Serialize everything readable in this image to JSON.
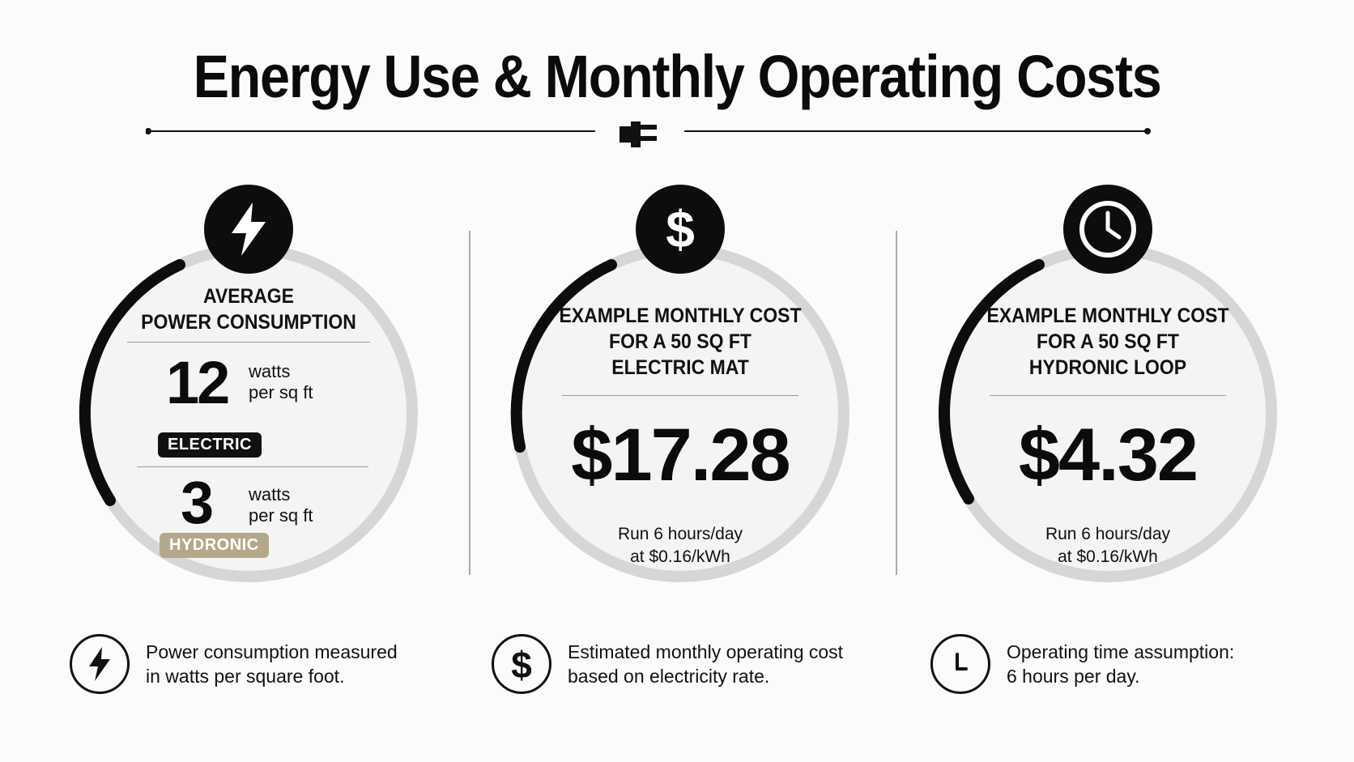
{
  "title": "Energy Use & Monthly Operating Costs",
  "icons": {
    "divider": "plug-icon",
    "card1": "lightning-icon",
    "card2": "dollar-icon",
    "card3": "clock-icon"
  },
  "colors": {
    "dark": "#0d0d0d",
    "ring_track": "#d6d6d6",
    "hydronic_tag": "#b5a88a"
  },
  "cards": [
    {
      "heading_line1": "AVERAGE",
      "heading_line2": "POWER CONSUMPTION",
      "electric_value": "12",
      "electric_unit_line1": "watts",
      "electric_unit_line2": "per sq ft",
      "electric_tag": "ELECTRIC",
      "hydronic_value": "3",
      "hydronic_unit_line1": "watts",
      "hydronic_unit_line2": "per sq ft",
      "hydronic_tag": "HYDRONIC"
    },
    {
      "heading_line1": "EXAMPLE MONTHLY COST",
      "heading_line2": "FOR A 50 SQ FT",
      "heading_line3": "ELECTRIC MAT",
      "value": "$17.28",
      "note_line1": "Run 6 hours/day",
      "note_line2": "at $0.16/kWh"
    },
    {
      "heading_line1": "EXAMPLE MONTHLY COST",
      "heading_line2": "FOR A 50 SQ FT",
      "heading_line3": "HYDRONIC LOOP",
      "value": "$4.32",
      "note_line1": "Run 6 hours/day",
      "note_line2": "at $0.16/kWh"
    }
  ],
  "footer": [
    {
      "line1": "Power consumption measured",
      "line2": "in watts per square foot."
    },
    {
      "line1": "Estimated monthly operating cost",
      "line2": "based on electricity rate."
    },
    {
      "line1": "Operating time assumption:",
      "line2": "6 hours per day."
    }
  ]
}
